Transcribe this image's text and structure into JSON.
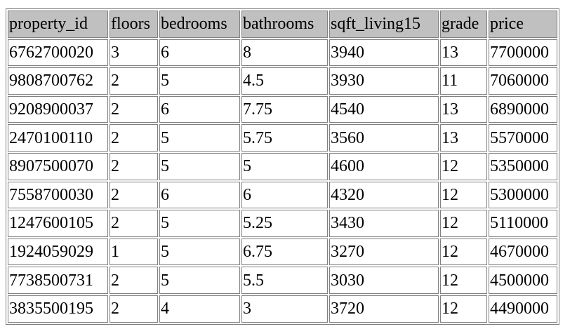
{
  "table": {
    "headers": [
      "property_id",
      "floors",
      "bedrooms",
      "bathrooms",
      "sqft_living15",
      "grade",
      "price"
    ],
    "rows": [
      [
        "6762700020",
        "3",
        "6",
        "8",
        "3940",
        "13",
        "7700000"
      ],
      [
        "9808700762",
        "2",
        "5",
        "4.5",
        "3930",
        "11",
        "7060000"
      ],
      [
        "9208900037",
        "2",
        "6",
        "7.75",
        "4540",
        "13",
        "6890000"
      ],
      [
        "2470100110",
        "2",
        "5",
        "5.75",
        "3560",
        "13",
        "5570000"
      ],
      [
        "8907500070",
        "2",
        "5",
        "5",
        "4600",
        "12",
        "5350000"
      ],
      [
        "7558700030",
        "2",
        "6",
        "6",
        "4320",
        "12",
        "5300000"
      ],
      [
        "1247600105",
        "2",
        "5",
        "5.25",
        "3430",
        "12",
        "5110000"
      ],
      [
        "1924059029",
        "1",
        "5",
        "6.75",
        "3270",
        "12",
        "4670000"
      ],
      [
        "7738500731",
        "2",
        "5",
        "5.5",
        "3030",
        "12",
        "4500000"
      ],
      [
        "3835500195",
        "2",
        "4",
        "3",
        "3720",
        "12",
        "4490000"
      ]
    ]
  },
  "colors": {
    "header_background": "#c0c0c0",
    "border": "#808080",
    "text": "#000000",
    "page_background": "#ffffff"
  }
}
